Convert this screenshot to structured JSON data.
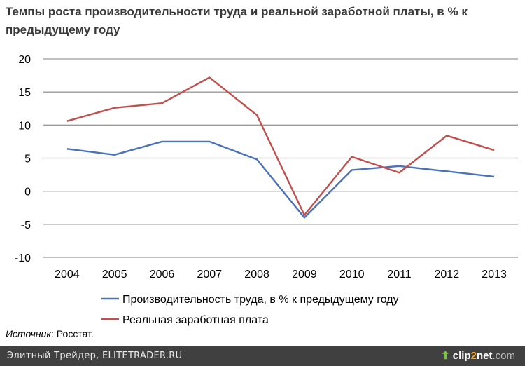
{
  "chart_data": {
    "type": "line",
    "title": "Темпы роста производительности труда и реальной заработной платы, в % к предыдущему году",
    "categories": [
      "2004",
      "2005",
      "2006",
      "2007",
      "2008",
      "2009",
      "2010",
      "2011",
      "2012",
      "2013"
    ],
    "ylim": [
      -10,
      20
    ],
    "yticks": [
      -10,
      -5,
      0,
      5,
      10,
      15,
      20
    ],
    "ytick_labels": [
      "-10",
      "-5",
      "0",
      "5",
      "10",
      "15",
      "20"
    ],
    "grid": true,
    "legend": "bottom",
    "series": [
      {
        "name": "Производительность труда, в % к предыдущему году",
        "color": "#4a72b8",
        "values": [
          6.4,
          5.5,
          7.5,
          7.5,
          4.8,
          -4.0,
          3.2,
          3.8,
          3.0,
          2.2
        ]
      },
      {
        "name": "Реальная заработная плата",
        "color": "#c0504d",
        "values": [
          10.6,
          12.6,
          13.3,
          17.2,
          11.5,
          -3.6,
          5.2,
          2.8,
          8.4,
          6.2
        ]
      }
    ]
  },
  "source_label": "Источник",
  "source_value": ": Росстат.",
  "footer": {
    "text": "Элитный Трейдер, ELITETRADER.RU",
    "logo_a": "clip",
    "logo_b": "2",
    "logo_c": "net",
    "logo_d": ".com"
  }
}
